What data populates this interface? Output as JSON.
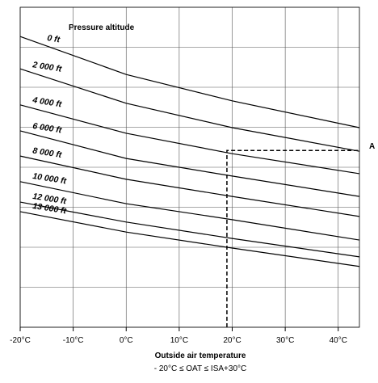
{
  "chart_data": {
    "type": "line",
    "title": "Pressure altitude",
    "x_label": "Outside air temperature",
    "subtitle": "- 20°C ≤ OAT ≤ ISA+30°C",
    "xlim": [
      -20,
      44
    ],
    "ylim": [
      0,
      8
    ],
    "xticks": [
      {
        "value": -20,
        "label": "-20°C"
      },
      {
        "value": -10,
        "label": "-10°C"
      },
      {
        "value": 0,
        "label": "0°C"
      },
      {
        "value": 10,
        "label": "10°C"
      },
      {
        "value": 20,
        "label": "20°C"
      },
      {
        "value": 30,
        "label": "30°C"
      },
      {
        "value": 40,
        "label": "40°C"
      }
    ],
    "yticks": [
      0,
      1,
      2,
      3,
      4,
      5,
      6,
      7,
      8
    ],
    "grid": true,
    "x": [
      -20,
      0,
      20,
      44
    ],
    "series": [
      {
        "name": "0 ft",
        "color": "#000000",
        "values": [
          7.27,
          6.32,
          5.66,
          4.99
        ]
      },
      {
        "name": "2 000 ft",
        "color": "#000000",
        "values": [
          6.46,
          5.6,
          4.99,
          4.4
        ]
      },
      {
        "name": "4 000 ft",
        "color": "#000000",
        "values": [
          5.56,
          4.85,
          4.34,
          3.84
        ]
      },
      {
        "name": "6 000 ft",
        "color": "#000000",
        "values": [
          4.91,
          4.22,
          3.78,
          3.27
        ]
      },
      {
        "name": "8 000 ft",
        "color": "#000000",
        "values": [
          4.28,
          3.7,
          3.27,
          2.77
        ]
      },
      {
        "name": "10 000 ft",
        "color": "#000000",
        "values": [
          3.64,
          3.09,
          2.69,
          2.18
        ]
      },
      {
        "name": "12 000 ft",
        "color": "#000000",
        "values": [
          3.13,
          2.63,
          2.22,
          1.76
        ]
      },
      {
        "name": "13 000 ft",
        "color": "#000000",
        "values": [
          2.89,
          2.38,
          1.98,
          1.52
        ]
      }
    ],
    "annotation": {
      "x": 19,
      "y": 4.42,
      "label": "A"
    }
  }
}
